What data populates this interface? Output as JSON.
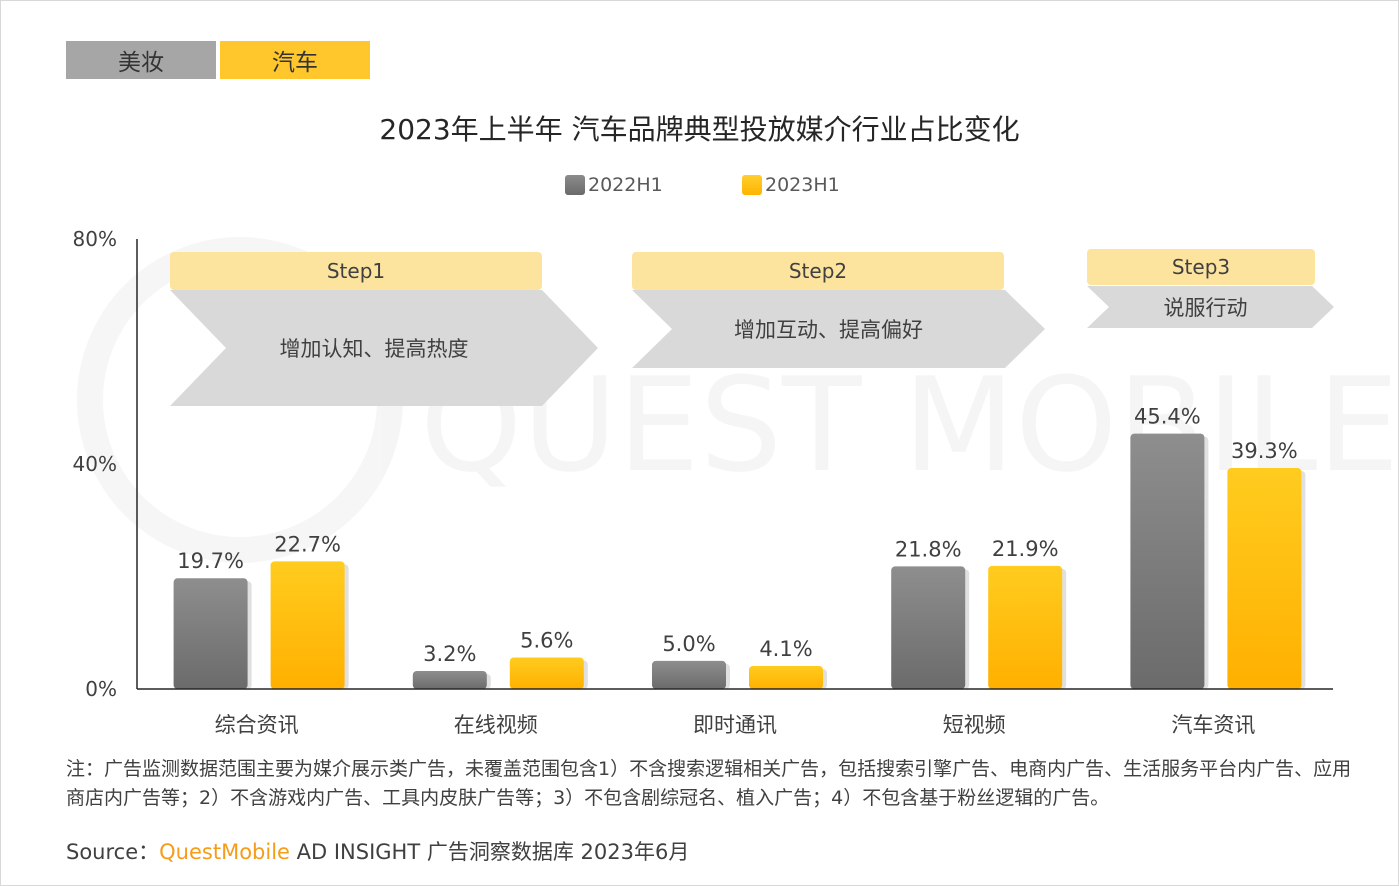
{
  "tabs": [
    {
      "label": "美妆",
      "active": false
    },
    {
      "label": "汽车",
      "active": true
    }
  ],
  "colors": {
    "series_2022": "#7f7f7f",
    "series_2023": "#ffc000",
    "step_band": "#fde49e",
    "step_arrow": "#d9d9d9",
    "brand": "#f59c1a"
  },
  "chart_data": {
    "type": "bar",
    "title": "2023年上半年 汽车品牌典型投放媒介行业占比变化",
    "categories": [
      "综合资讯",
      "在线视频",
      "即时通讯",
      "短视频",
      "汽车资讯"
    ],
    "series": [
      {
        "name": "2022H1",
        "values": [
          19.7,
          3.2,
          5.0,
          21.8,
          45.4
        ],
        "labels": [
          "19.7%",
          "3.2%",
          "5.0%",
          "21.8%",
          "45.4%"
        ]
      },
      {
        "name": "2023H1",
        "values": [
          22.7,
          5.6,
          4.1,
          21.9,
          39.3
        ],
        "labels": [
          "22.7%",
          "5.6%",
          "4.1%",
          "21.9%",
          "39.3%"
        ]
      }
    ],
    "ylim": [
      0,
      80
    ],
    "yticks": [
      0,
      40,
      80
    ],
    "ytick_labels": [
      "0%",
      "40%",
      "80%"
    ],
    "xlabel": "",
    "ylabel": "",
    "legend_position": "top-center",
    "grid": false,
    "annotations": [
      {
        "step": "Step1",
        "text": "增加认知、提高热度"
      },
      {
        "step": "Step2",
        "text": "增加互动、提高偏好"
      },
      {
        "step": "Step3",
        "text": "说服行动"
      }
    ]
  },
  "footer": {
    "note": "注：广告监测数据范围主要为媒介展示类广告，未覆盖范围包含1）不含搜索逻辑相关广告，包括搜索引擎广告、电商内广告、生活服务平台内广告、应用商店内广告等；2）不含游戏内广告、工具内皮肤广告等；3）不包含剧综冠名、植入广告；4）不包含基于粉丝逻辑的广告。",
    "source_prefix": "Source：",
    "source_brand": "QuestMobile",
    "source_suffix": " AD INSIGHT 广告洞察数据库 2023年6月"
  },
  "watermark": "QUEST MOBILE"
}
